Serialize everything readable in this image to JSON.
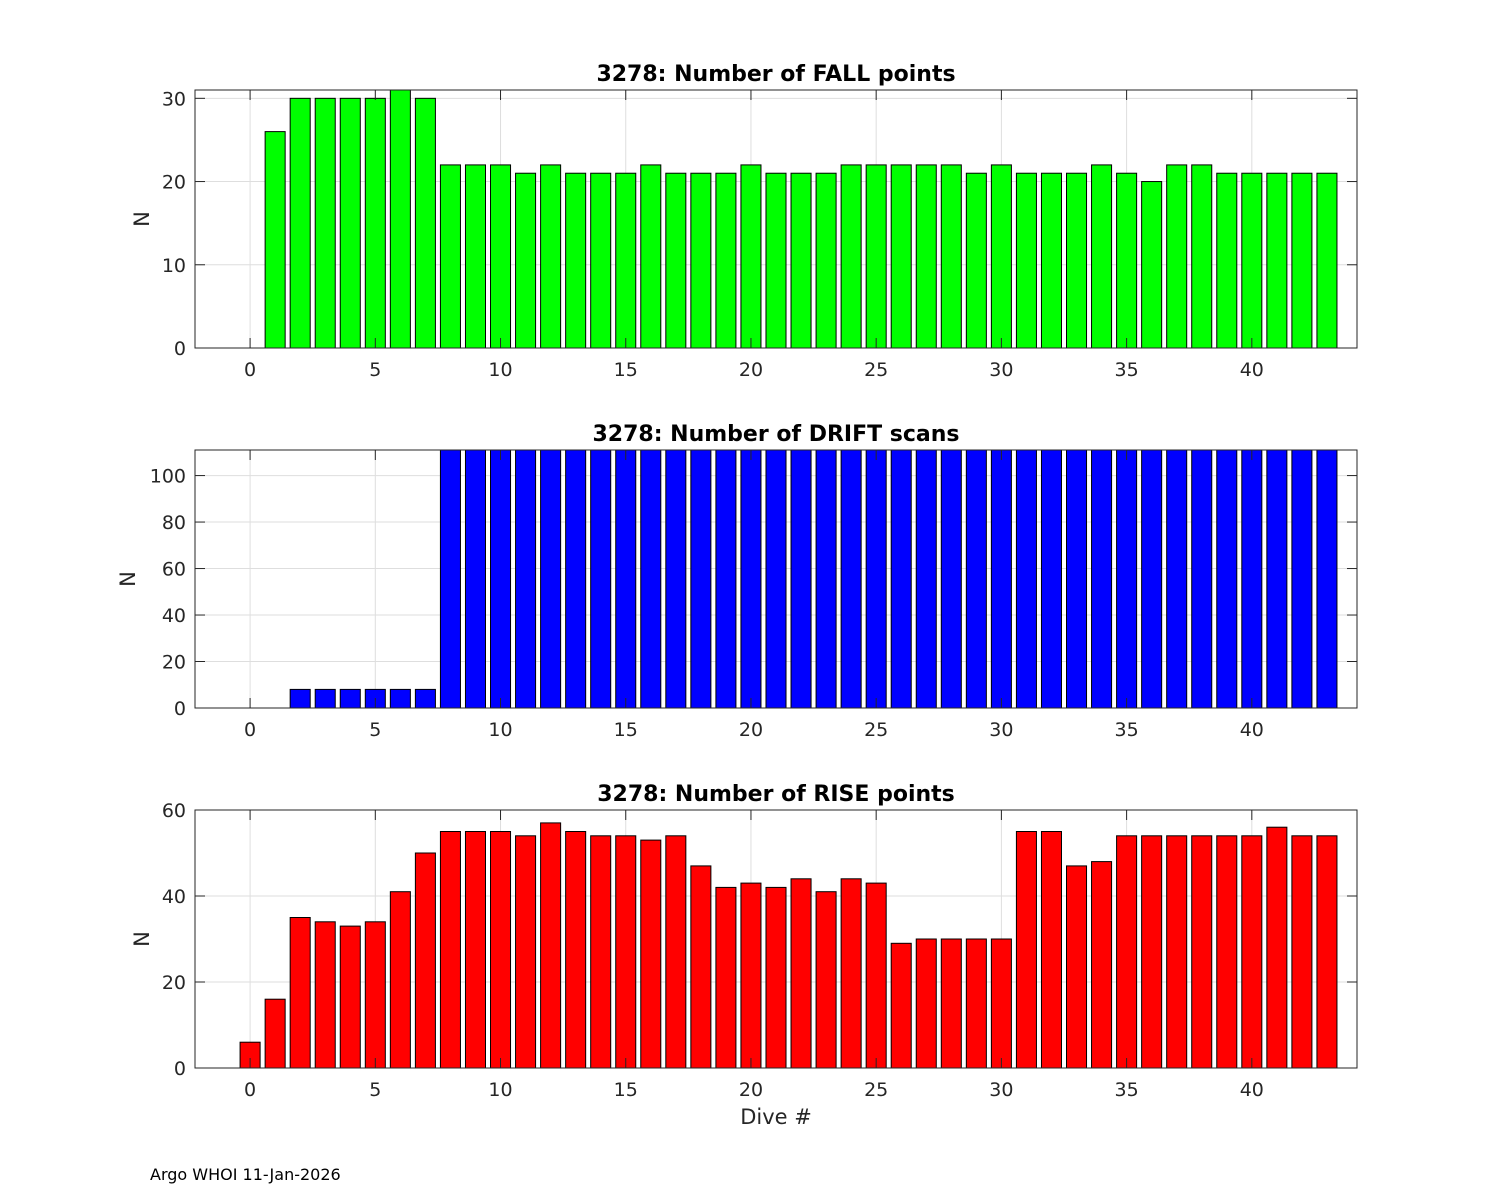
{
  "footer_text": "Argo WHOI 11-Jan-2026",
  "chart_data": [
    {
      "type": "bar",
      "title": "3278: Number of FALL points",
      "xlabel": "",
      "ylabel": "N",
      "color": "#00ff00",
      "xlim": [
        -2.2,
        44.2
      ],
      "ylim": [
        0,
        31
      ],
      "xticks": [
        0,
        5,
        10,
        15,
        20,
        25,
        30,
        35,
        40
      ],
      "yticks": [
        0,
        10,
        20,
        30
      ],
      "grid": true,
      "x": [
        0,
        1,
        2,
        3,
        4,
        5,
        6,
        7,
        8,
        9,
        10,
        11,
        12,
        13,
        14,
        15,
        16,
        17,
        18,
        19,
        20,
        21,
        22,
        23,
        24,
        25,
        26,
        27,
        28,
        29,
        30,
        31,
        32,
        33,
        34,
        35,
        36,
        37,
        38,
        39,
        40,
        41,
        42,
        43
      ],
      "values": [
        0,
        26,
        30,
        30,
        30,
        30,
        31,
        30,
        22,
        22,
        22,
        21,
        22,
        21,
        21,
        21,
        22,
        21,
        21,
        21,
        22,
        21,
        21,
        21,
        22,
        22,
        22,
        22,
        22,
        21,
        22,
        21,
        21,
        21,
        22,
        21,
        20,
        22,
        22,
        21,
        21,
        21,
        21,
        21
      ]
    },
    {
      "type": "bar",
      "title": "3278: Number of DRIFT scans",
      "xlabel": "",
      "ylabel": "N",
      "color": "#0000ff",
      "xlim": [
        -2.2,
        44.2
      ],
      "ylim": [
        0,
        111
      ],
      "xticks": [
        0,
        5,
        10,
        15,
        20,
        25,
        30,
        35,
        40
      ],
      "yticks": [
        0,
        20,
        40,
        60,
        80,
        100
      ],
      "grid": true,
      "x": [
        0,
        1,
        2,
        3,
        4,
        5,
        6,
        7,
        8,
        9,
        10,
        11,
        12,
        13,
        14,
        15,
        16,
        17,
        18,
        19,
        20,
        21,
        22,
        23,
        24,
        25,
        26,
        27,
        28,
        29,
        30,
        31,
        32,
        33,
        34,
        35,
        36,
        37,
        38,
        39,
        40,
        41,
        42,
        43
      ],
      "values": [
        0,
        0,
        8,
        8,
        8,
        8,
        8,
        8,
        111,
        111,
        111,
        111,
        111,
        111,
        111,
        111,
        111,
        111,
        111,
        111,
        111,
        111,
        111,
        111,
        111,
        111,
        111,
        111,
        111,
        111,
        111,
        111,
        111,
        111,
        111,
        111,
        111,
        111,
        111,
        111,
        111,
        111,
        111,
        111
      ],
      "extra_x": [
        -1
      ],
      "extra_values": [
        0
      ]
    },
    {
      "type": "bar",
      "title": "3278: Number of RISE points",
      "xlabel": "Dive #",
      "ylabel": "N",
      "color": "#ff0000",
      "xlim": [
        -2.2,
        44.2
      ],
      "ylim": [
        0,
        60
      ],
      "xticks": [
        0,
        5,
        10,
        15,
        20,
        25,
        30,
        35,
        40
      ],
      "yticks": [
        0,
        20,
        40,
        60
      ],
      "grid": true,
      "x": [
        0,
        1,
        2,
        3,
        4,
        5,
        6,
        7,
        8,
        9,
        10,
        11,
        12,
        13,
        14,
        15,
        16,
        17,
        18,
        19,
        20,
        21,
        22,
        23,
        24,
        25,
        26,
        27,
        28,
        29,
        30,
        31,
        32,
        33,
        34,
        35,
        36,
        37,
        38,
        39,
        40,
        41,
        42,
        43
      ],
      "values": [
        6,
        16,
        35,
        34,
        33,
        34,
        41,
        50,
        55,
        55,
        55,
        54,
        57,
        55,
        54,
        54,
        53,
        54,
        47,
        42,
        43,
        42,
        44,
        41,
        44,
        43,
        29,
        30,
        30,
        30,
        30,
        55,
        55,
        47,
        48,
        54,
        54,
        54,
        54,
        54,
        54,
        56,
        54,
        54
      ]
    }
  ]
}
